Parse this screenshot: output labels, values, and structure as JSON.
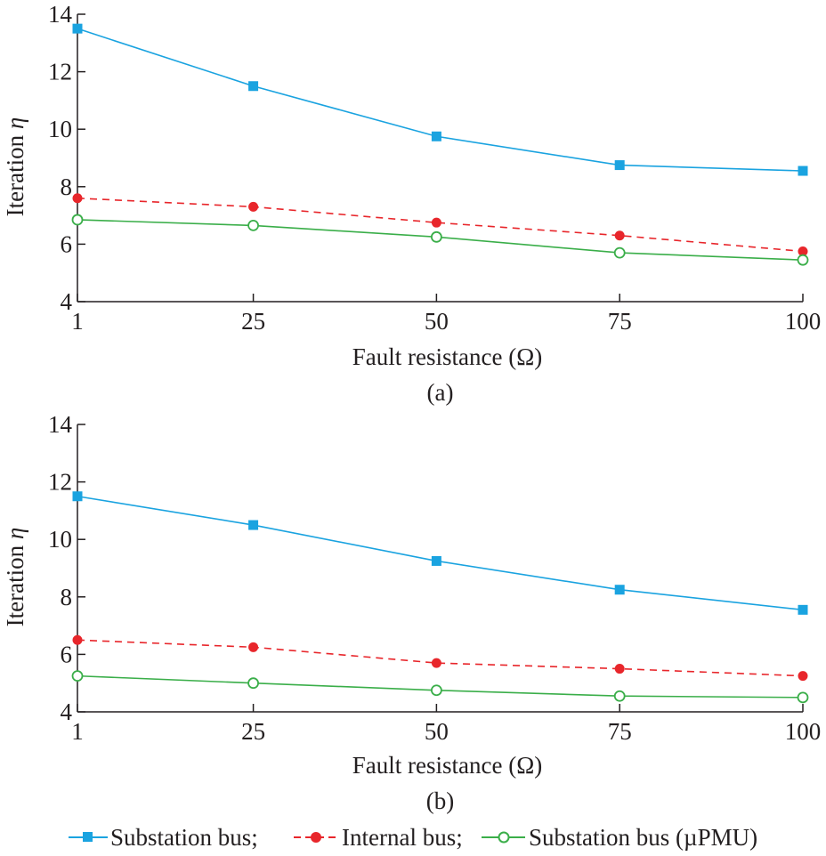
{
  "chart_data": [
    {
      "type": "line",
      "panel_label": "(a)",
      "xlabel": "Fault resistance (Ω)",
      "ylabel_text": "Iteration ",
      "ylabel_symbol": "η",
      "x": [
        1,
        25,
        50,
        75,
        100
      ],
      "xlim": [
        1,
        100
      ],
      "ylim": [
        4,
        14
      ],
      "xticks": [
        "1",
        "25",
        "50",
        "75",
        "100"
      ],
      "yticks": [
        "4",
        "6",
        "8",
        "10",
        "12",
        "14"
      ],
      "grid": false,
      "series": [
        {
          "name": "Substation bus;",
          "color": "#1aa3e0",
          "marker": "square",
          "dash": "solid",
          "values": [
            13.5,
            11.5,
            9.75,
            8.75,
            8.55
          ]
        },
        {
          "name": "Internal bus;",
          "color": "#e8262b",
          "marker": "filled-circle",
          "dash": "dashed",
          "values": [
            7.6,
            7.3,
            6.75,
            6.3,
            5.75
          ]
        },
        {
          "name": "Substation bus (µPMU)",
          "color": "#3aae49",
          "marker": "open-circle",
          "dash": "solid",
          "values": [
            6.85,
            6.65,
            6.25,
            5.7,
            5.45
          ]
        }
      ]
    },
    {
      "type": "line",
      "panel_label": "(b)",
      "xlabel": "Fault resistance (Ω)",
      "ylabel_text": "Iteration ",
      "ylabel_symbol": "η",
      "x": [
        1,
        25,
        50,
        75,
        100
      ],
      "xlim": [
        1,
        100
      ],
      "ylim": [
        4,
        14
      ],
      "xticks": [
        "1",
        "25",
        "50",
        "75",
        "100"
      ],
      "yticks": [
        "4",
        "6",
        "8",
        "10",
        "12",
        "14"
      ],
      "grid": false,
      "series": [
        {
          "name": "Substation bus;",
          "color": "#1aa3e0",
          "marker": "square",
          "dash": "solid",
          "values": [
            11.5,
            10.5,
            9.25,
            8.25,
            7.55
          ]
        },
        {
          "name": "Internal bus;",
          "color": "#e8262b",
          "marker": "filled-circle",
          "dash": "dashed",
          "values": [
            6.5,
            6.25,
            5.7,
            5.5,
            5.25
          ]
        },
        {
          "name": "Substation bus (µPMU)",
          "color": "#3aae49",
          "marker": "open-circle",
          "dash": "solid",
          "values": [
            5.25,
            5.0,
            4.75,
            4.55,
            4.5
          ]
        }
      ]
    }
  ],
  "legend": {
    "placement": "bottom",
    "items": [
      "Substation bus;",
      "Internal bus;",
      "Substation bus (µPMU)"
    ]
  }
}
